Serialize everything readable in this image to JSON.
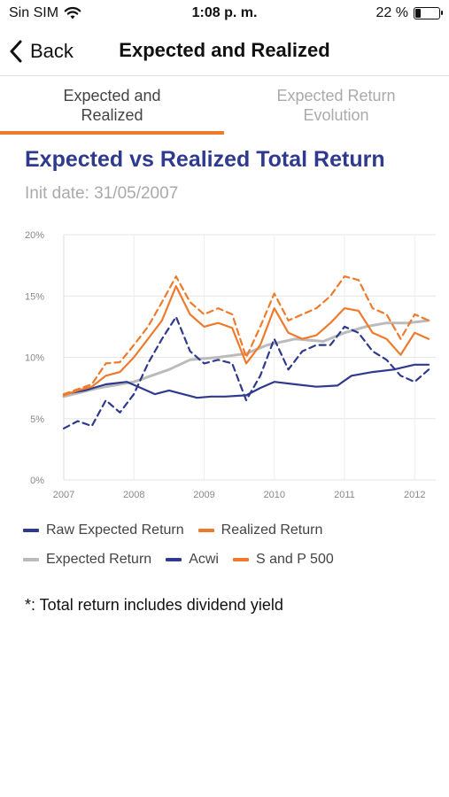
{
  "status": {
    "carrier": "Sin SIM",
    "time": "1:08 p. m.",
    "battery": "22 %",
    "battery_level": 0.22
  },
  "nav": {
    "back_label": "Back",
    "title": "Expected and Realized"
  },
  "tabs": [
    {
      "label_line1": "Expected and",
      "label_line2": "Realized"
    },
    {
      "label_line1": "Expected Return",
      "label_line2": "Evolution"
    }
  ],
  "header": {
    "title": "Expected vs Realized Total Return",
    "init_date": "Init date: 31/05/2007"
  },
  "legend": [
    {
      "label": "Raw Expected Return",
      "color": "#2f3a8f",
      "dash": false
    },
    {
      "label": "Realized Return",
      "color": "#f07a2c",
      "dash": false
    },
    {
      "label": "Expected Return",
      "color": "#bbbbbb",
      "dash": false
    },
    {
      "label": "Acwi",
      "color": "#2f3a8f",
      "dash": true
    },
    {
      "label": "S and P 500",
      "color": "#f07a2c",
      "dash": true
    }
  ],
  "footnote": "*: Total return includes dividend yield",
  "chart_data": {
    "type": "line",
    "xlim": [
      2007.0,
      2012.3
    ],
    "ylim": [
      0,
      20
    ],
    "x_ticks": [
      "2007",
      "2008",
      "2009",
      "2010",
      "2011",
      "2012"
    ],
    "y_ticks": [
      "0%",
      "5%",
      "10%",
      "15%",
      "20%"
    ],
    "grid": true,
    "series": [
      {
        "name": "Raw Expected Return",
        "color": "#2f3a8f",
        "dash": false,
        "x": [
          2007.0,
          2007.3,
          2007.6,
          2007.9,
          2008.1,
          2008.3,
          2008.5,
          2008.7,
          2008.9,
          2009.1,
          2009.3,
          2009.6,
          2009.8,
          2010.0,
          2010.3,
          2010.6,
          2010.9,
          2011.1,
          2011.4,
          2011.7,
          2012.0,
          2012.2
        ],
        "y": [
          7.0,
          7.3,
          7.8,
          8.0,
          7.5,
          7.0,
          7.3,
          7.0,
          6.7,
          6.8,
          6.8,
          6.9,
          7.5,
          8.0,
          7.8,
          7.6,
          7.7,
          8.5,
          8.8,
          9.0,
          9.4,
          9.4
        ]
      },
      {
        "name": "Realized Return",
        "color": "#f07a2c",
        "dash": false,
        "x": [
          2007.0,
          2007.2,
          2007.4,
          2007.6,
          2007.8,
          2008.0,
          2008.2,
          2008.4,
          2008.6,
          2008.8,
          2009.0,
          2009.2,
          2009.4,
          2009.6,
          2009.8,
          2010.0,
          2010.2,
          2010.4,
          2010.6,
          2010.8,
          2011.0,
          2011.2,
          2011.4,
          2011.6,
          2011.8,
          2012.0,
          2012.2
        ],
        "y": [
          6.9,
          7.3,
          7.6,
          8.5,
          8.8,
          10.0,
          11.5,
          13.0,
          15.8,
          13.5,
          12.5,
          12.8,
          12.4,
          9.5,
          11.0,
          14.0,
          12.0,
          11.5,
          11.8,
          12.8,
          14.0,
          13.8,
          12.0,
          11.5,
          10.2,
          12.0,
          11.5
        ]
      },
      {
        "name": "Expected Return",
        "color": "#bbbbbb",
        "dash": false,
        "x": [
          2007.0,
          2007.5,
          2008.0,
          2008.5,
          2008.8,
          2009.2,
          2009.6,
          2009.9,
          2010.3,
          2010.7,
          2011.0,
          2011.3,
          2011.6,
          2011.9,
          2012.2
        ],
        "y": [
          6.8,
          7.5,
          8.0,
          9.0,
          9.8,
          10.0,
          10.3,
          11.0,
          11.5,
          11.3,
          12.0,
          12.5,
          12.8,
          12.8,
          13.0
        ]
      },
      {
        "name": "Acwi",
        "color": "#2f3a8f",
        "dash": true,
        "x": [
          2007.0,
          2007.2,
          2007.4,
          2007.6,
          2007.8,
          2008.0,
          2008.2,
          2008.4,
          2008.6,
          2008.8,
          2009.0,
          2009.2,
          2009.4,
          2009.6,
          2009.8,
          2010.0,
          2010.2,
          2010.4,
          2010.6,
          2010.8,
          2011.0,
          2011.2,
          2011.4,
          2011.6,
          2011.8,
          2012.0,
          2012.2
        ],
        "y": [
          4.2,
          4.8,
          4.4,
          6.5,
          5.5,
          7.0,
          9.5,
          11.5,
          13.3,
          10.5,
          9.5,
          9.8,
          9.5,
          6.5,
          8.5,
          11.5,
          9.0,
          10.5,
          11.0,
          11.0,
          12.5,
          12.0,
          10.5,
          9.8,
          8.5,
          8.0,
          9.0
        ]
      },
      {
        "name": "S and P 500",
        "color": "#f07a2c",
        "dash": true,
        "x": [
          2007.0,
          2007.2,
          2007.4,
          2007.6,
          2007.8,
          2008.0,
          2008.2,
          2008.4,
          2008.6,
          2008.8,
          2009.0,
          2009.2,
          2009.4,
          2009.6,
          2009.8,
          2010.0,
          2010.2,
          2010.4,
          2010.6,
          2010.8,
          2011.0,
          2011.2,
          2011.4,
          2011.6,
          2011.8,
          2012.0,
          2012.2
        ],
        "y": [
          7.0,
          7.4,
          7.8,
          9.5,
          9.6,
          11.0,
          12.5,
          14.5,
          16.6,
          14.5,
          13.5,
          14.0,
          13.5,
          10.0,
          12.5,
          15.2,
          13.0,
          13.5,
          14.0,
          15.0,
          16.6,
          16.3,
          14.0,
          13.5,
          11.5,
          13.5,
          13.0
        ]
      }
    ]
  }
}
